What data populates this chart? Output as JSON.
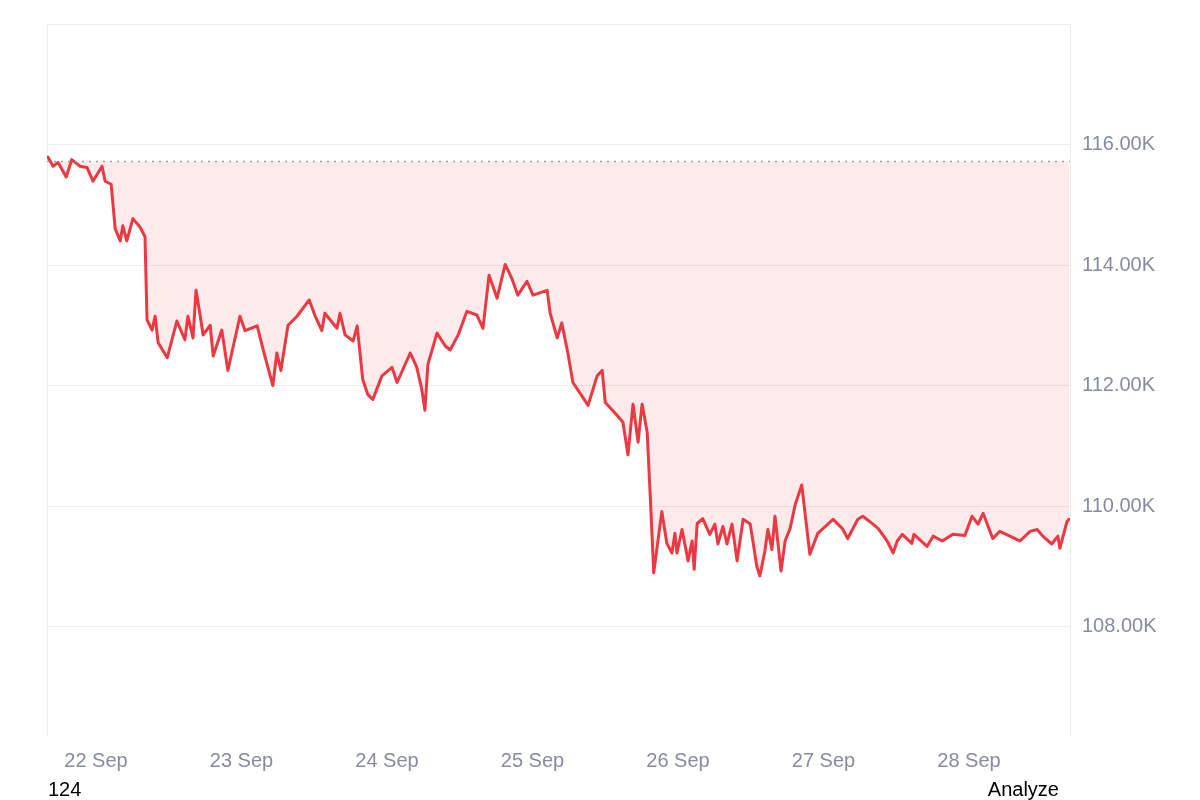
{
  "chart_data": {
    "type": "line",
    "ylim": [
      106.2,
      118
    ],
    "yticks": [
      {
        "value": 108,
        "label": "108.00K"
      },
      {
        "value": 110,
        "label": "110.00K"
      },
      {
        "value": 112,
        "label": "112.00K"
      },
      {
        "value": 114,
        "label": "114.00K"
      },
      {
        "value": 116,
        "label": "116.00K"
      }
    ],
    "xlim": [
      "--09-21T15:55",
      "--09-28T16:40"
    ],
    "xticks": [
      {
        "value": "--09-22",
        "label": "22 Sep"
      },
      {
        "value": "--09-23",
        "label": "23 Sep"
      },
      {
        "value": "--09-24",
        "label": "24 Sep"
      },
      {
        "value": "--09-25",
        "label": "25 Sep"
      },
      {
        "value": "--09-26",
        "label": "26 Sep"
      },
      {
        "value": "--09-27",
        "label": "27 Sep"
      },
      {
        "value": "--09-28",
        "label": "28 Sep"
      }
    ],
    "tick_labels": "xy",
    "grid": "y",
    "marker": "none",
    "line_style": "solid",
    "legend": false,
    "ref_lines": [
      {
        "axis": "y",
        "value": 115.72,
        "color": "#9aa0a6",
        "line_style": "dotted"
      }
    ],
    "annotations": [
      "124",
      "Analyze"
    ],
    "series": [
      {
        "color": "#ea3943",
        "x": [
          "--09-21T16:05",
          "--09-21T16:55",
          "--09-21T17:45",
          "--09-21T19:05",
          "--09-21T20:00",
          "--09-21T21:20",
          "--09-21T22:30",
          "--09-21T23:30",
          "--09-22T01:00",
          "--09-22T01:30",
          "--09-22T02:30",
          "--09-22T03:10",
          "--09-22T04:00",
          "--09-22T04:25",
          "--09-22T05:05",
          "--09-22T06:05",
          "--09-22T07:15",
          "--09-22T08:05",
          "--09-22T08:25",
          "--09-22T09:15",
          "--09-22T09:45",
          "--09-22T10:15",
          "--09-22T11:45",
          "--09-22T13:20",
          "--09-22T14:40",
          "--09-22T15:10",
          "--09-22T16:00",
          "--09-22T16:30",
          "--09-22T17:10",
          "--09-22T17:40",
          "--09-22T18:50",
          "--09-22T19:20",
          "--09-22T20:45",
          "--09-22T21:45",
          "--09-22T23:45",
          "--09-23T00:35",
          "--09-23T02:35",
          "--09-23T03:35",
          "--09-23T05:10",
          "--09-23T05:50",
          "--09-23T06:30",
          "--09-23T07:40",
          "--09-23T09:10",
          "--09-23T11:10",
          "--09-23T12:05",
          "--09-23T13:15",
          "--09-23T13:45",
          "--09-23T15:45",
          "--09-23T16:15",
          "--09-23T17:05",
          "--09-23T18:25",
          "--09-23T19:05",
          "--09-23T20:00",
          "--09-23T20:50",
          "--09-23T21:40",
          "--09-23T23:10",
          "--09-24T00:50",
          "--09-24T01:40",
          "--09-24T03:50",
          "--09-24T04:55",
          "--09-24T05:45",
          "--09-24T06:15",
          "--09-24T06:45",
          "--09-24T08:15",
          "--09-24T09:35",
          "--09-24T10:25",
          "--09-24T11:45",
          "--09-24T13:10",
          "--09-24T14:50",
          "--09-24T15:50",
          "--09-24T16:50",
          "--09-24T18:10",
          "--09-24T19:30",
          "--09-24T20:35",
          "--09-24T21:35",
          "--09-24T23:05",
          "--09-25T00:05",
          "--09-25T02:25",
          "--09-25T02:55",
          "--09-25T04:05",
          "--09-25T04:50",
          "--09-25T05:50",
          "--09-25T06:40",
          "--09-25T08:20",
          "--09-25T09:10",
          "--09-25T10:40",
          "--09-25T11:30",
          "--09-25T12:00",
          "--09-25T13:55",
          "--09-25T14:55",
          "--09-25T15:45",
          "--09-25T16:35",
          "--09-25T17:25",
          "--09-25T18:05",
          "--09-25T18:55",
          "--09-25T19:25",
          "--09-25T20:00",
          "--09-25T21:20",
          "--09-25T22:10",
          "--09-25T23:00",
          "--09-25T23:30",
          "--09-25T23:50",
          "--09-26T00:40",
          "--09-26T01:40",
          "--09-26T02:20",
          "--09-26T02:40",
          "--09-26T03:10",
          "--09-26T04:05",
          "--09-26T05:15",
          "--09-26T06:05",
          "--09-26T06:35",
          "--09-26T07:25",
          "--09-26T08:05",
          "--09-26T08:55",
          "--09-26T09:45",
          "--09-26T10:45",
          "--09-26T11:55",
          "--09-26T13:00",
          "--09-26T13:30",
          "--09-26T14:20",
          "--09-26T14:50",
          "--09-26T15:30",
          "--09-26T16:00",
          "--09-26T17:00",
          "--09-26T17:40",
          "--09-26T18:30",
          "--09-26T19:20",
          "--09-26T20:25",
          "--09-26T21:45",
          "--09-26T23:05",
          "--09-26T23:25",
          "--09-27T01:35",
          "--09-27T03:05",
          "--09-27T04:00",
          "--09-27T05:40",
          "--09-27T06:30",
          "--09-27T07:40",
          "--09-27T09:00",
          "--09-27T10:30",
          "--09-27T11:30",
          "--09-27T12:10",
          "--09-27T13:00",
          "--09-27T14:35",
          "--09-27T14:55",
          "--09-27T17:05",
          "--09-27T18:05",
          "--09-27T19:35",
          "--09-27T21:20",
          "--09-27T23:20",
          "--09-28T00:30",
          "--09-28T01:30",
          "--09-28T02:20",
          "--09-28T03:55",
          "--09-28T05:05",
          "--09-28T06:45",
          "--09-28T08:25",
          "--09-28T10:05",
          "--09-28T11:15",
          "--09-28T12:10",
          "--09-28T13:40",
          "--09-28T14:40",
          "--09-28T15:00",
          "--09-28T16:10",
          "--09-28T16:30"
        ],
        "values": [
          115.79,
          115.64,
          115.7,
          115.46,
          115.75,
          115.64,
          115.62,
          115.39,
          115.64,
          115.39,
          115.34,
          114.6,
          114.4,
          114.65,
          114.4,
          114.77,
          114.63,
          114.47,
          113.09,
          112.92,
          113.15,
          112.71,
          112.46,
          113.07,
          112.76,
          113.15,
          112.79,
          113.58,
          113.17,
          112.84,
          113.0,
          112.49,
          112.92,
          112.25,
          113.15,
          112.91,
          112.99,
          112.59,
          112.0,
          112.54,
          112.25,
          113.0,
          113.15,
          113.42,
          113.17,
          112.91,
          113.2,
          112.95,
          113.2,
          112.84,
          112.74,
          112.99,
          112.1,
          111.85,
          111.77,
          112.16,
          112.3,
          112.05,
          112.54,
          112.3,
          111.93,
          111.59,
          112.35,
          112.87,
          112.66,
          112.59,
          112.84,
          113.23,
          113.17,
          112.95,
          113.83,
          113.45,
          114.01,
          113.78,
          113.5,
          113.73,
          113.5,
          113.58,
          113.2,
          112.79,
          113.04,
          112.54,
          112.05,
          111.8,
          111.67,
          112.16,
          112.25,
          111.72,
          111.51,
          111.39,
          110.85,
          111.69,
          111.06,
          111.69,
          111.23,
          110.19,
          108.89,
          109.91,
          109.38,
          109.22,
          109.55,
          109.22,
          109.61,
          109.09,
          109.42,
          108.95,
          109.71,
          109.79,
          109.53,
          109.7,
          109.37,
          109.66,
          109.37,
          109.7,
          109.09,
          109.78,
          109.7,
          109.0,
          108.84,
          109.25,
          109.61,
          109.28,
          109.83,
          108.92,
          109.42,
          109.63,
          110.02,
          110.35,
          109.2,
          109.55,
          109.58,
          109.78,
          109.63,
          109.46,
          109.78,
          109.83,
          109.74,
          109.63,
          109.42,
          109.22,
          109.42,
          109.53,
          109.38,
          109.53,
          109.33,
          109.5,
          109.42,
          109.53,
          109.51,
          109.83,
          109.7,
          109.88,
          109.46,
          109.58,
          109.5,
          109.42,
          109.58,
          109.61,
          109.5,
          109.37,
          109.5,
          109.3,
          109.74,
          109.78
        ]
      }
    ]
  }
}
